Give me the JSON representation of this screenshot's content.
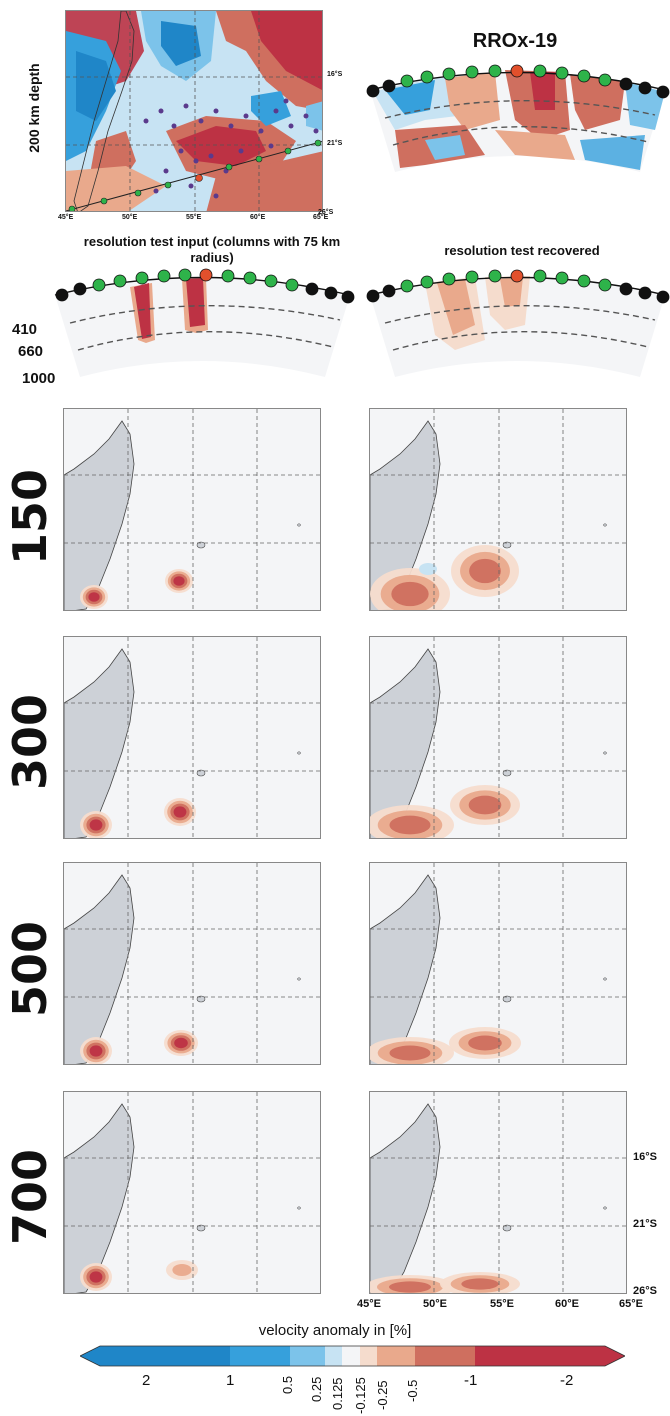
{
  "top_map": {
    "depth_label": "200 km depth",
    "lat_labels": [
      "16°S",
      "21°S",
      "26°S"
    ],
    "lon_labels": [
      "45°E",
      "50°E",
      "55°E",
      "60°E",
      "65°E"
    ]
  },
  "model": {
    "title": "RROx-19"
  },
  "resolution_input": {
    "title": "resolution test input (columns with 75 km radius)",
    "depth_labels": [
      "410",
      "660",
      "1000"
    ]
  },
  "resolution_recovered": {
    "title": "resolution test recovered"
  },
  "depth_rows": [
    {
      "depth": "150"
    },
    {
      "depth": "300"
    },
    {
      "depth": "500"
    },
    {
      "depth": "700"
    }
  ],
  "grid_labels": {
    "lat": [
      "16°S",
      "21°S",
      "26°S"
    ],
    "lon": [
      "45°E",
      "50°E",
      "55°E",
      "60°E",
      "65°E"
    ]
  },
  "colorbar": {
    "label": "velocity anomaly in [%]",
    "ticks_large": [
      "2",
      "1",
      "-1",
      "-2"
    ],
    "ticks_small": [
      "0.5",
      "0.25",
      "0.125",
      "-0.125",
      "-0.25",
      "-0.5"
    ],
    "colors": [
      "#1f86c8",
      "#36a0dc",
      "#7cc3ea",
      "#c7e3f3",
      "#f4f5f7",
      "#f5dccd",
      "#e9a98c",
      "#cf6f5f",
      "#bd3244"
    ]
  }
}
